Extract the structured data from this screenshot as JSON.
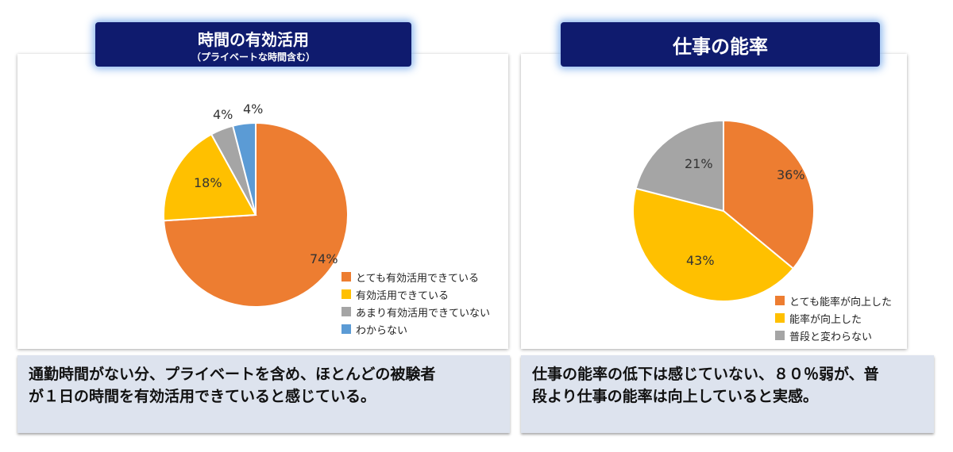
{
  "left": {
    "title": "時間の有効活用",
    "subtitle": "（プライベートな時間含む）",
    "caption_line1": "通勤時間がない分、プライベートを含め、ほとんどの被験者",
    "caption_line2": "が１日の時間を有効活用できていると感じている。"
  },
  "right": {
    "title": "仕事の能率",
    "caption_line1": "仕事の能率の低下は感じていない、８０％弱が、普",
    "caption_line2": "段より仕事の能率は向上していると実感。"
  },
  "chart_data": [
    {
      "type": "pie",
      "title": "",
      "categories": [
        "とても有効活用できている",
        "有効活用できている",
        "あまり有効活用できていない",
        "わからない"
      ],
      "values": [
        74,
        18,
        4,
        4
      ],
      "labels": [
        "74%",
        "18%",
        "4%",
        "4%"
      ],
      "colors": [
        "#ed7d31",
        "#ffc000",
        "#a5a5a5",
        "#5b9bd5"
      ],
      "legend_position": "bottom-right"
    },
    {
      "type": "pie",
      "title": "",
      "categories": [
        "とても能率が向上した",
        "能率が向上した",
        "普段と変わらない"
      ],
      "values": [
        36,
        43,
        21
      ],
      "labels": [
        "36%",
        "43%",
        "21%"
      ],
      "colors": [
        "#ed7d31",
        "#ffc000",
        "#a5a5a5"
      ],
      "legend_position": "bottom-right"
    }
  ]
}
